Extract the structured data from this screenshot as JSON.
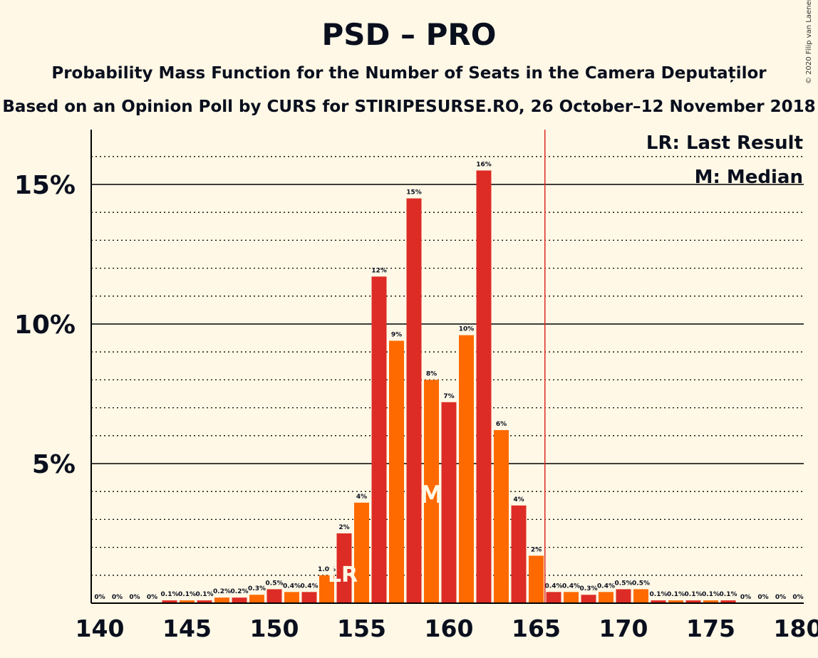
{
  "title": "PSD – PRO",
  "subtitle": "Probability Mass Function for the Number of Seats in the Camera Deputaților",
  "subtitle2": "Based on an Opinion Poll by CURS for STIRIPESURSE.RO, 26 October–12 November 2018",
  "copyright": "© 2020 Filip van Laenen",
  "legend": {
    "last_result": "LR: Last Result",
    "median": "M: Median"
  },
  "colors": {
    "background": "#fff8e6",
    "red": "#dd2c25",
    "orange": "#ff6a00",
    "axis": "#000000",
    "majority_line": "#dd2c25"
  },
  "chart_data": {
    "type": "bar",
    "xlabel": "",
    "ylabel": "",
    "x": [
      140,
      141,
      142,
      143,
      144,
      145,
      146,
      147,
      148,
      149,
      150,
      151,
      152,
      153,
      154,
      155,
      156,
      157,
      158,
      159,
      160,
      161,
      162,
      163,
      164,
      165,
      166,
      167,
      168,
      169,
      170,
      171,
      172,
      173,
      174,
      175,
      176,
      177,
      178,
      179,
      180
    ],
    "values": [
      0,
      0,
      0,
      0,
      0.1,
      0.1,
      0.1,
      0.2,
      0.2,
      0.3,
      0.5,
      0.4,
      0.4,
      1.0,
      2.5,
      3.6,
      11.7,
      9.4,
      14.5,
      8.0,
      7.2,
      9.6,
      15.5,
      6.2,
      3.5,
      1.7,
      0.4,
      0.4,
      0.3,
      0.4,
      0.5,
      0.5,
      0.1,
      0.1,
      0.1,
      0.1,
      0.1,
      0,
      0,
      0,
      0
    ],
    "data_labels": [
      "0%",
      "0%",
      "0%",
      "0%",
      "0.1%",
      "0.1%",
      "0.1%",
      "0.2%",
      "0.2%",
      "0.3%",
      "0.5%",
      "0.4%",
      "0.4%",
      "1.0%",
      "2%",
      "4%",
      "12%",
      "9%",
      "15%",
      "8%",
      "7%",
      "10%",
      "16%",
      "6%",
      "4%",
      "2%",
      "0.4%",
      "0.4%",
      "0.3%",
      "0.4%",
      "0.5%",
      "0.5%",
      "0.1%",
      "0.1%",
      "0.1%",
      "0.1%",
      "0.1%",
      "0%",
      "0%",
      "0%",
      "0%"
    ],
    "xlim": [
      140,
      180
    ],
    "ylim": [
      0,
      17
    ],
    "x_ticks": [
      "140",
      "145",
      "150",
      "155",
      "160",
      "165",
      "170",
      "175",
      "180"
    ],
    "y_ticks": [
      {
        "value": 5,
        "label": "5%"
      },
      {
        "value": 10,
        "label": "10%"
      },
      {
        "value": 15,
        "label": "15%"
      }
    ],
    "minor_gridlines": [
      1,
      2,
      3,
      4,
      6,
      7,
      8,
      9,
      11,
      12,
      13,
      14,
      16
    ],
    "last_result": {
      "seat": 154,
      "label": "LR"
    },
    "median": {
      "seat": 159,
      "label": "M"
    },
    "majority_line": 165.5,
    "legend_position": "top-right"
  }
}
